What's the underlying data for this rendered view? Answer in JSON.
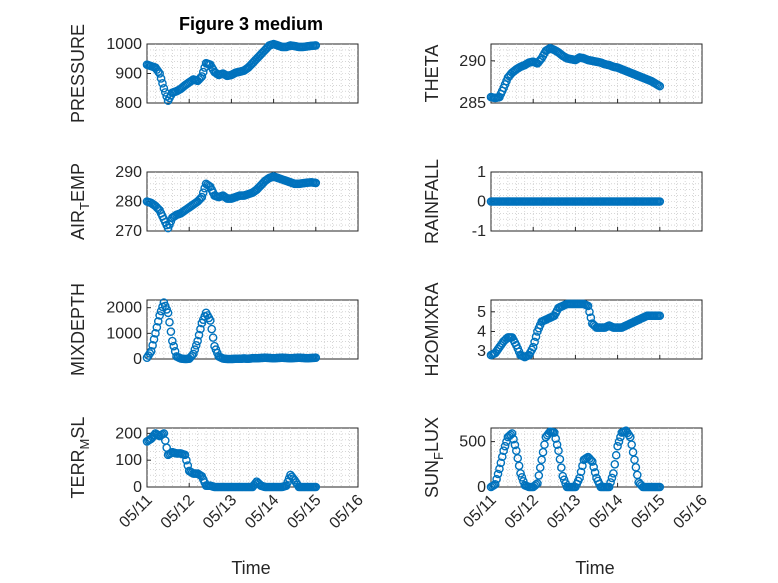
{
  "figure": {
    "title": "Figure 3 medium"
  },
  "colors": {
    "series": "#0072BD",
    "axis": "#262626",
    "grid": "#bdbdbd"
  },
  "chart_data": [
    {
      "type": "scatter",
      "title": "Figure 3 medium",
      "xlabel": "",
      "ylabel": "PRESSURE",
      "xlim": [
        0,
        5
      ],
      "ylim": [
        800,
        1000
      ],
      "yticks": [
        800,
        900,
        1000
      ],
      "yticklabels": [
        "800",
        "900",
        "1000"
      ],
      "x": [
        0,
        0.1,
        0.2,
        0.3,
        0.4,
        0.5,
        0.6,
        0.7,
        0.8,
        0.9,
        1.0,
        1.1,
        1.2,
        1.3,
        1.4,
        1.5,
        1.6,
        1.7,
        1.8,
        1.9,
        2.0,
        2.1,
        2.2,
        2.3,
        2.4,
        2.5,
        2.6,
        2.7,
        2.8,
        2.9,
        3.0,
        3.1,
        3.2,
        3.3,
        3.4,
        3.5,
        3.6,
        3.7,
        3.8,
        3.9,
        4.0
      ],
      "y": [
        930,
        925,
        920,
        900,
        850,
        808,
        835,
        840,
        848,
        860,
        870,
        880,
        875,
        890,
        935,
        930,
        905,
        895,
        900,
        892,
        895,
        903,
        906,
        910,
        920,
        935,
        950,
        965,
        980,
        995,
        1000,
        995,
        990,
        990,
        995,
        993,
        990,
        990,
        992,
        994,
        995
      ]
    },
    {
      "type": "scatter",
      "xlabel": "",
      "ylabel": "THETA",
      "xlim": [
        0,
        5
      ],
      "ylim": [
        285,
        292
      ],
      "yticks": [
        285,
        290
      ],
      "yticklabels": [
        "285",
        "290"
      ],
      "x": [
        0,
        0.1,
        0.2,
        0.3,
        0.4,
        0.5,
        0.6,
        0.7,
        0.8,
        0.9,
        1.0,
        1.1,
        1.2,
        1.3,
        1.4,
        1.5,
        1.6,
        1.7,
        1.8,
        1.9,
        2.0,
        2.1,
        2.2,
        2.3,
        2.4,
        2.5,
        2.6,
        2.7,
        2.8,
        2.9,
        3.0,
        3.1,
        3.2,
        3.3,
        3.4,
        3.5,
        3.6,
        3.7,
        3.8,
        3.9,
        4.0
      ],
      "y": [
        285.7,
        285.6,
        285.7,
        286.8,
        288.0,
        288.6,
        289.0,
        289.3,
        289.5,
        289.8,
        289.9,
        289.7,
        290.3,
        291.2,
        291.5,
        291.3,
        291.0,
        290.6,
        290.3,
        290.2,
        290.1,
        290.4,
        290.3,
        290.1,
        290.0,
        289.9,
        289.8,
        289.6,
        289.5,
        289.3,
        289.2,
        289.0,
        288.8,
        288.6,
        288.4,
        288.2,
        288.0,
        287.8,
        287.6,
        287.3,
        287.0
      ]
    },
    {
      "type": "scatter",
      "xlabel": "",
      "ylabel": "AIR_TEMP",
      "xlim": [
        0,
        5
      ],
      "ylim": [
        270,
        290
      ],
      "yticks": [
        270,
        280,
        290
      ],
      "yticklabels": [
        "270",
        "280",
        "290"
      ],
      "x": [
        0,
        0.1,
        0.2,
        0.3,
        0.4,
        0.5,
        0.6,
        0.7,
        0.8,
        0.9,
        1.0,
        1.1,
        1.2,
        1.3,
        1.4,
        1.5,
        1.6,
        1.7,
        1.8,
        1.9,
        2.0,
        2.1,
        2.2,
        2.3,
        2.4,
        2.5,
        2.6,
        2.7,
        2.8,
        2.9,
        3.0,
        3.1,
        3.2,
        3.3,
        3.4,
        3.5,
        3.6,
        3.7,
        3.8,
        3.9,
        4.0
      ],
      "y": [
        280,
        279.5,
        278.5,
        277,
        274,
        271,
        274.5,
        275.5,
        276,
        277,
        278,
        279,
        280,
        281.5,
        286,
        285,
        282,
        281.5,
        282,
        281,
        281,
        281.5,
        282,
        282,
        282.5,
        283,
        284,
        285.5,
        287,
        288,
        288.5,
        288,
        287.5,
        287,
        286.5,
        286,
        286,
        286.2,
        286.4,
        286.5,
        286.3
      ]
    },
    {
      "type": "scatter",
      "xlabel": "",
      "ylabel": "RAINFALL",
      "xlim": [
        0,
        5
      ],
      "ylim": [
        -1,
        1
      ],
      "yticks": [
        -1,
        0,
        1
      ],
      "yticklabels": [
        "-1",
        "0",
        "1"
      ],
      "x": [
        0,
        0.1,
        0.2,
        0.3,
        0.4,
        0.5,
        0.6,
        0.7,
        0.8,
        0.9,
        1.0,
        1.1,
        1.2,
        1.3,
        1.4,
        1.5,
        1.6,
        1.7,
        1.8,
        1.9,
        2.0,
        2.1,
        2.2,
        2.3,
        2.4,
        2.5,
        2.6,
        2.7,
        2.8,
        2.9,
        3.0,
        3.1,
        3.2,
        3.3,
        3.4,
        3.5,
        3.6,
        3.7,
        3.8,
        3.9,
        4.0
      ],
      "y": [
        0,
        0,
        0,
        0,
        0,
        0,
        0,
        0,
        0,
        0,
        0,
        0,
        0,
        0,
        0,
        0,
        0,
        0,
        0,
        0,
        0,
        0,
        0,
        0,
        0,
        0,
        0,
        0,
        0,
        0,
        0,
        0,
        0,
        0,
        0,
        0,
        0,
        0,
        0,
        0,
        0
      ]
    },
    {
      "type": "scatter",
      "xlabel": "",
      "ylabel": "MIXDEPTH",
      "xlim": [
        0,
        5
      ],
      "ylim": [
        0,
        2300
      ],
      "yticks": [
        0,
        1000,
        2000
      ],
      "yticklabels": [
        "0",
        "1000",
        "2000"
      ],
      "x": [
        0,
        0.1,
        0.2,
        0.3,
        0.4,
        0.5,
        0.6,
        0.7,
        0.8,
        0.9,
        1.0,
        1.1,
        1.2,
        1.3,
        1.4,
        1.5,
        1.6,
        1.7,
        1.8,
        1.9,
        2.0,
        2.1,
        2.2,
        2.3,
        2.4,
        2.5,
        2.6,
        2.7,
        2.8,
        2.9,
        3.0,
        3.1,
        3.2,
        3.3,
        3.4,
        3.5,
        3.6,
        3.7,
        3.8,
        3.9,
        4.0
      ],
      "y": [
        50,
        300,
        1000,
        1700,
        2200,
        1800,
        700,
        100,
        20,
        0,
        10,
        200,
        700,
        1400,
        1800,
        1500,
        500,
        100,
        20,
        0,
        0,
        10,
        10,
        20,
        10,
        30,
        30,
        40,
        50,
        40,
        30,
        40,
        50,
        40,
        30,
        40,
        50,
        40,
        30,
        40,
        50
      ]
    },
    {
      "type": "scatter",
      "xlabel": "",
      "ylabel": "H2OMIXRA",
      "xlim": [
        0,
        5
      ],
      "ylim": [
        2.6,
        5.6
      ],
      "yticks": [
        3,
        4,
        5
      ],
      "yticklabels": [
        "3",
        "4",
        "5"
      ],
      "x": [
        0,
        0.1,
        0.2,
        0.3,
        0.4,
        0.5,
        0.6,
        0.7,
        0.8,
        0.9,
        1.0,
        1.1,
        1.2,
        1.3,
        1.4,
        1.5,
        1.6,
        1.7,
        1.8,
        1.9,
        2.0,
        2.1,
        2.2,
        2.3,
        2.4,
        2.5,
        2.6,
        2.7,
        2.8,
        2.9,
        3.0,
        3.1,
        3.2,
        3.3,
        3.4,
        3.5,
        3.6,
        3.7,
        3.8,
        3.9,
        4.0
      ],
      "y": [
        2.8,
        2.9,
        3.2,
        3.5,
        3.7,
        3.7,
        3.3,
        2.8,
        2.7,
        2.8,
        3.2,
        4.0,
        4.5,
        4.6,
        4.7,
        4.8,
        5.2,
        5.3,
        5.4,
        5.4,
        5.4,
        5.4,
        5.4,
        5.3,
        4.4,
        4.2,
        4.2,
        4.2,
        4.3,
        4.2,
        4.2,
        4.2,
        4.3,
        4.4,
        4.5,
        4.6,
        4.7,
        4.8,
        4.8,
        4.8,
        4.8
      ]
    },
    {
      "type": "scatter",
      "xlabel": "",
      "ylabel": "TERR_MSL",
      "xlim": [
        0,
        5
      ],
      "ylim": [
        0,
        220
      ],
      "yticks": [
        0,
        100,
        200
      ],
      "yticklabels": [
        "0",
        "100",
        "200"
      ],
      "x": [
        0,
        0.1,
        0.2,
        0.3,
        0.4,
        0.5,
        0.6,
        0.7,
        0.8,
        0.9,
        1.0,
        1.1,
        1.2,
        1.3,
        1.4,
        1.5,
        1.6,
        1.7,
        1.8,
        1.9,
        2.0,
        2.1,
        2.2,
        2.3,
        2.4,
        2.5,
        2.6,
        2.7,
        2.8,
        2.9,
        3.0,
        3.1,
        3.2,
        3.3,
        3.4,
        3.5,
        3.6,
        3.7,
        3.8,
        3.9,
        4.0
      ],
      "y": [
        170,
        180,
        200,
        190,
        200,
        120,
        130,
        125,
        125,
        120,
        60,
        50,
        50,
        40,
        5,
        5,
        0,
        0,
        0,
        0,
        0,
        0,
        0,
        0,
        0,
        0,
        20,
        5,
        0,
        0,
        0,
        0,
        0,
        5,
        45,
        25,
        0,
        0,
        0,
        0,
        0
      ]
    },
    {
      "type": "scatter",
      "xlabel": "",
      "ylabel": "SUN_FLUX",
      "xlim": [
        0,
        5
      ],
      "ylim": [
        0,
        650
      ],
      "yticks": [
        0,
        500
      ],
      "yticklabels": [
        "0",
        "500"
      ],
      "x": [
        0,
        0.1,
        0.2,
        0.3,
        0.4,
        0.5,
        0.6,
        0.7,
        0.8,
        0.9,
        1.0,
        1.1,
        1.2,
        1.3,
        1.4,
        1.5,
        1.6,
        1.7,
        1.8,
        1.9,
        2.0,
        2.1,
        2.2,
        2.3,
        2.4,
        2.5,
        2.6,
        2.7,
        2.8,
        2.9,
        3.0,
        3.1,
        3.2,
        3.3,
        3.4,
        3.5,
        3.6,
        3.7,
        3.8,
        3.9,
        4.0
      ],
      "y": [
        0,
        30,
        200,
        400,
        550,
        590,
        400,
        150,
        20,
        0,
        0,
        40,
        300,
        550,
        610,
        600,
        400,
        120,
        0,
        0,
        0,
        100,
        300,
        330,
        280,
        100,
        0,
        0,
        0,
        150,
        450,
        600,
        620,
        550,
        300,
        50,
        0,
        0,
        0,
        0,
        0
      ]
    }
  ],
  "xaxis": {
    "ticks": [
      0,
      1,
      2,
      3,
      4,
      5
    ],
    "ticklabels": [
      "05/11",
      "05/12",
      "05/13",
      "05/14",
      "05/15",
      "05/16"
    ],
    "label": "Time"
  }
}
